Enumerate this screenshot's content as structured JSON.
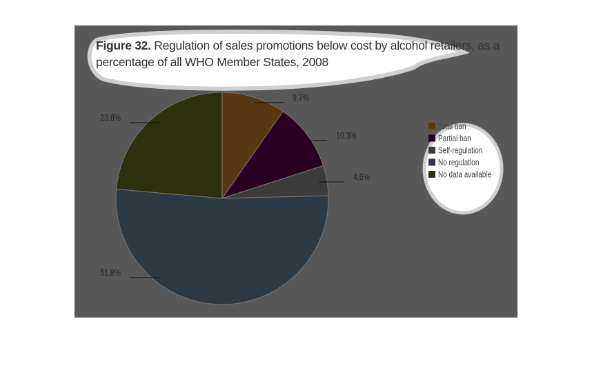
{
  "chart_data": {
    "type": "pie",
    "figure_label": "Figure 32.",
    "title": "Regulation of sales promotions below cost by alcohol retailers, as a percentage of all WHO Member States, 2008",
    "categories": [
      "Total ban",
      "Partial ban",
      "Self-regulation",
      "No regulation",
      "No data available"
    ],
    "values": [
      9.7,
      10.3,
      4.6,
      51.8,
      23.6
    ],
    "value_labels": [
      "9.7%",
      "10.3%",
      "4.6%",
      "51.8%",
      "23.6%"
    ],
    "colors": [
      "#573810",
      "#2a0022",
      "#3c3c3c",
      "#2d3943",
      "#2d300d"
    ],
    "legend": "right"
  }
}
